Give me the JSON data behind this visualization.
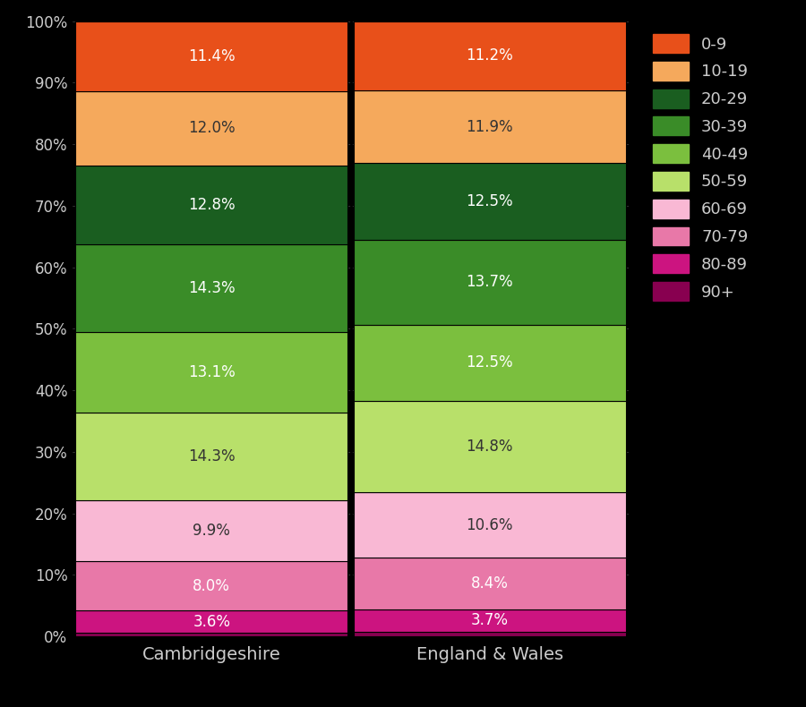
{
  "categories": [
    "Cambridgeshire",
    "England & Wales"
  ],
  "stack_order": [
    "90+",
    "80-89",
    "70-79",
    "60-69",
    "50-59",
    "40-49",
    "30-39",
    "20-29",
    "10-19",
    "0-9"
  ],
  "all_vals": {
    "Cambridgeshire": {
      "0-9": 11.4,
      "10-19": 12.0,
      "20-29": 12.8,
      "30-39": 14.3,
      "40-49": 13.1,
      "50-59": 14.3,
      "60-69": 9.9,
      "70-79": 8.0,
      "80-89": 3.6,
      "90+": 0.6
    },
    "England & Wales": {
      "0-9": 11.2,
      "10-19": 11.9,
      "20-29": 12.5,
      "30-39": 13.7,
      "40-49": 12.5,
      "50-59": 14.8,
      "60-69": 10.6,
      "70-79": 8.4,
      "80-89": 3.7,
      "90+": 0.7
    }
  },
  "colors": {
    "0-9": "#e8501a",
    "10-19": "#f5a95c",
    "20-29": "#1a5e20",
    "30-39": "#3a8c28",
    "40-49": "#7bbf3e",
    "50-59": "#b8e06a",
    "60-69": "#f9b8d4",
    "70-79": "#e878a8",
    "80-89": "#cc1480",
    "90+": "#880050"
  },
  "label_colors": {
    "0-9": "#ffffff",
    "10-19": "#333333",
    "20-29": "#ffffff",
    "30-39": "#ffffff",
    "40-49": "#ffffff",
    "50-59": "#333333",
    "60-69": "#333333",
    "70-79": "#ffffff",
    "80-89": "#ffffff",
    "90+": "#ffffff"
  },
  "background_color": "#000000",
  "text_color": "#cccccc",
  "figsize": [
    9.0,
    7.9
  ],
  "dpi": 100,
  "bar_width": 0.98,
  "label_min_pct": 2.0,
  "yticks": [
    0,
    10,
    20,
    30,
    40,
    50,
    60,
    70,
    80,
    90,
    100
  ]
}
